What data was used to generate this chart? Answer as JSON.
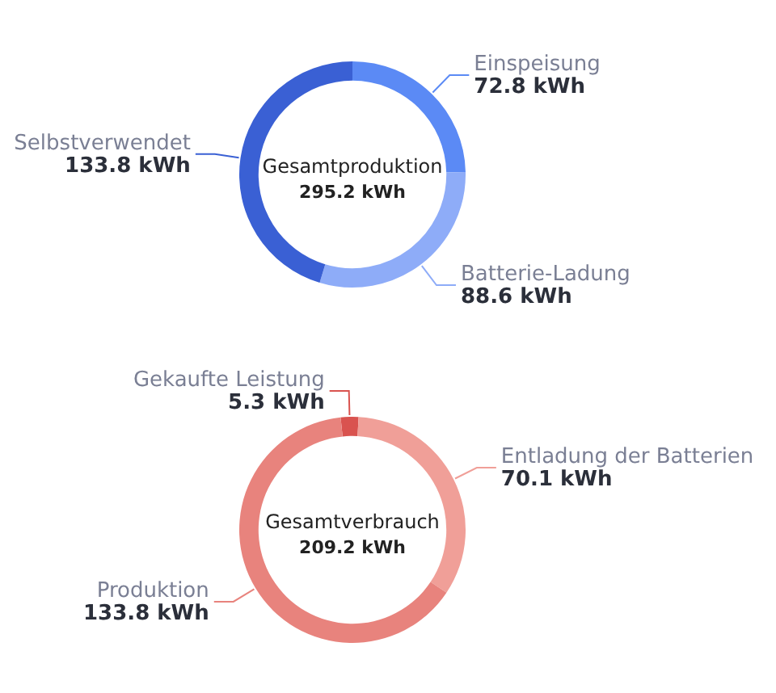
{
  "chart_data": [
    {
      "type": "donut",
      "title": "Gesamtproduktion",
      "subtitle": "295.2 kWh",
      "categories": [
        "Einspeisung",
        "Batterie-Ladung",
        "Selbstverwendet"
      ],
      "values": [
        72.8,
        88.6,
        133.8
      ],
      "colors": [
        "#5b8af5",
        "#8eacf8",
        "#3a60d4"
      ],
      "value_labels": [
        "72.8 kWh",
        "88.6 kWh",
        "133.8 kWh"
      ]
    },
    {
      "type": "donut",
      "title": "Gesamtverbrauch",
      "subtitle": "209.2 kWh",
      "categories": [
        "Gekaufte Leistung",
        "Entladung der Batterien",
        "Produktion"
      ],
      "values": [
        5.3,
        70.1,
        133.8
      ],
      "colors": [
        "#d9534f",
        "#f09f98",
        "#e8837d"
      ],
      "value_labels": [
        "5.3 kWh",
        "70.1 kWh",
        "133.8 kWh"
      ]
    }
  ]
}
